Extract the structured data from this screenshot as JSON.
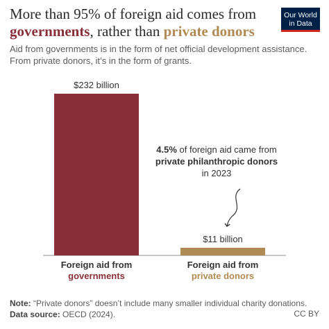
{
  "header": {
    "title_part1": "More than 95% of foreign aid comes from",
    "title_gov": "governments",
    "title_mid": ", rather than ",
    "title_priv": "private donors",
    "subtitle_line1": "Aid from governments is in the form of net official development assistance.",
    "subtitle_line2": "From private donors, it’s in the form of grants."
  },
  "logo": {
    "line1": "Our World",
    "line2": "in Data"
  },
  "chart_data": {
    "type": "bar",
    "categories": [
      "Foreign aid from governments",
      "Foreign aid from private donors"
    ],
    "category_lines": [
      {
        "line1": "Foreign aid from",
        "line2": "governments"
      },
      {
        "line1": "Foreign aid from",
        "line2": "private donors"
      }
    ],
    "values": [
      232,
      11
    ],
    "value_labels": [
      "$232 billion",
      "$11 billion"
    ],
    "units": "billion US$",
    "colors": [
      "#883039",
      "#b08a53"
    ],
    "ylim": [
      0,
      232
    ],
    "grid": false,
    "annotation": {
      "bold_part": "4.5%",
      "line1_rest": " of foreign aid came from",
      "line2": "private philanthropic donors",
      "line3": "in 2023"
    }
  },
  "footer": {
    "note_label": "Note:",
    "note_text": " “Private donors” doesn’t include many smaller individual charity donations.",
    "source_label": "Data source:",
    "source_text": " OECD (2024).",
    "license": "CC BY"
  }
}
